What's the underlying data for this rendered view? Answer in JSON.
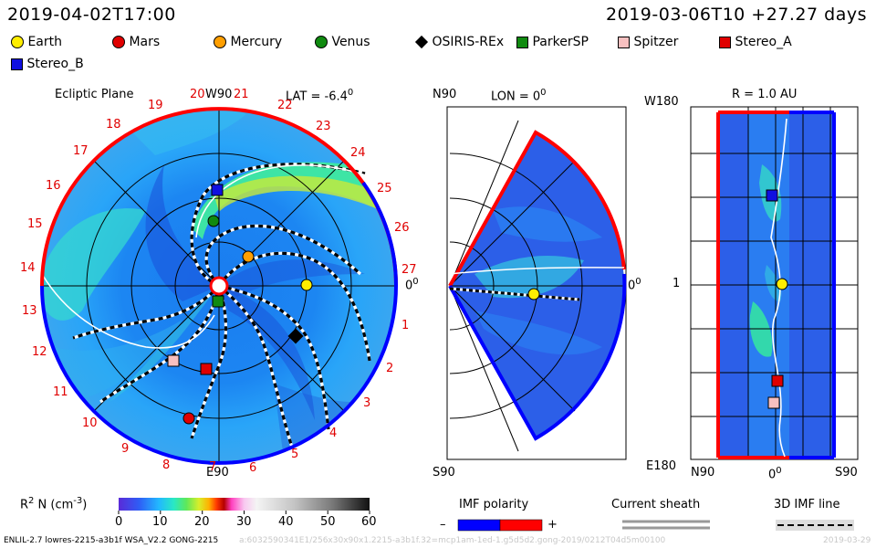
{
  "header": {
    "date_left": "2019-04-02T17:00",
    "date_right": "2019-03-06T10 +27.27 days"
  },
  "legend": [
    {
      "name": "Earth",
      "color": "#ffee00",
      "shape": "circle"
    },
    {
      "name": "Mars",
      "color": "#e00000",
      "shape": "circle"
    },
    {
      "name": "Mercury",
      "color": "#ff9f00",
      "shape": "circle"
    },
    {
      "name": "Venus",
      "color": "#108a10",
      "shape": "circle"
    },
    {
      "name": "OSIRIS-REx",
      "color": "#000000",
      "shape": "diamond"
    },
    {
      "name": "ParkerSP",
      "color": "#108a10",
      "shape": "square"
    },
    {
      "name": "Spitzer",
      "color": "#f7c0c0",
      "shape": "square"
    },
    {
      "name": "Stereo_A",
      "color": "#e00000",
      "shape": "square"
    },
    {
      "name": "Stereo_B",
      "color": "#1010e0",
      "shape": "square"
    }
  ],
  "panel_ecliptic": {
    "title": "Ecliptic Plane",
    "w90": "W90",
    "lat_label": "LAT = -6.4",
    "lat_sup": "0",
    "e90": "E90",
    "zero": "0",
    "zero_sup": "0",
    "day_numbers": [
      "1",
      "2",
      "3",
      "4",
      "5",
      "6",
      "7",
      "8",
      "9",
      "10",
      "11",
      "12",
      "13",
      "14",
      "15",
      "16",
      "17",
      "18",
      "19",
      "20",
      "21",
      "22",
      "23",
      "24",
      "25",
      "26",
      "27"
    ]
  },
  "panel_meridional": {
    "n90": "N90",
    "lon_label": "LON = 0",
    "lon_sup": "0",
    "s90": "S90",
    "zero": "0",
    "zero_sup": "0"
  },
  "panel_radial": {
    "r_label": "R = 1.0 AU",
    "w180": "W180",
    "e180": "E180",
    "one": "1",
    "n90": "N90",
    "zero": "0",
    "zero_sup": "0",
    "s90": "S90"
  },
  "colorbar": {
    "label": "R",
    "label_sup": "2",
    "label_rest": " N (cm",
    "label_unit_sup": "-3",
    "label_close": ")",
    "ticks": [
      "0",
      "10",
      "20",
      "30",
      "40",
      "50",
      "60"
    ]
  },
  "imf": {
    "title": "IMF polarity",
    "minus": "–",
    "plus": "+",
    "neg_color": "#0000ff",
    "pos_color": "#ff0000"
  },
  "current_sheath": {
    "title": "Current sheath"
  },
  "imf_line": {
    "title": "3D IMF line"
  },
  "footer": {
    "left": "ENLIL-2.7 lowres-2215-a3b1f WSA_V2.2 GONG-2215",
    "mid": "a:6032590341E1/256x30x90x1.2215-a3b1f.32=mcp1am-1ed-1.g5d5d2.gong-2019/0212T04d5m00100",
    "right": "2019-03-29"
  }
}
